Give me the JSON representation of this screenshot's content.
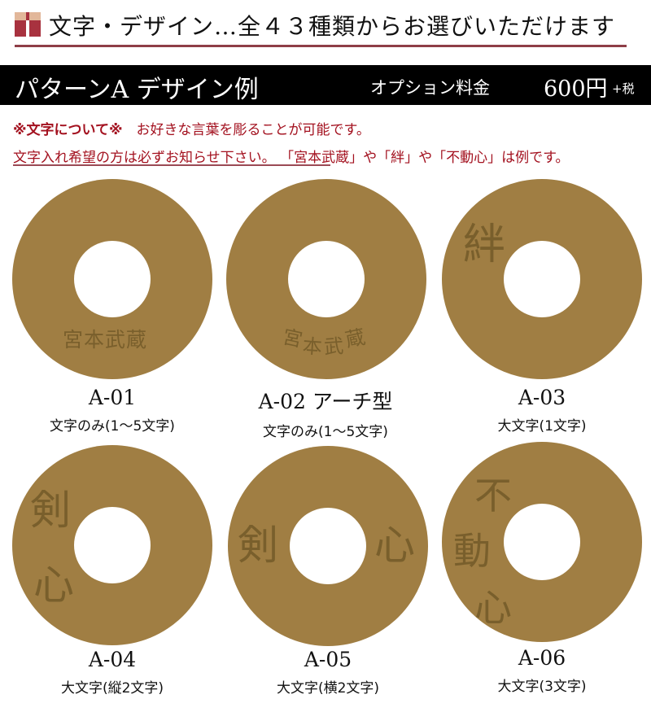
{
  "header": {
    "title": "文字・デザイン…全４３種類からお選びいただけます"
  },
  "band": {
    "title": "パターンA デザイン例",
    "option_label": "オプション料金",
    "price": "600円",
    "tax": "+税"
  },
  "notes": {
    "line1_bold": "※文字について※",
    "line1_rest": "お好きな言葉を彫ることが可能です。",
    "line2_underlined": "文字入れ希望の方は必ずお知らせ下さい。",
    "line2_rest": "「宮本武蔵」や「絆」や「不動心」は例です。"
  },
  "disk_color": "#a07e43",
  "designs": [
    {
      "code": "A-01",
      "desc": "文字のみ(1〜5文字)",
      "engraving": [
        "宮本武蔵"
      ]
    },
    {
      "code": "A-02 アーチ型",
      "desc": "文字のみ(1〜5文字)",
      "engraving": [
        "宮",
        "本",
        "武",
        "蔵"
      ]
    },
    {
      "code": "A-03",
      "desc": "大文字(1文字)",
      "engraving": [
        "絆"
      ]
    },
    {
      "code": "A-04",
      "desc": "大文字(縦2文字)",
      "engraving": [
        "剣",
        "心"
      ]
    },
    {
      "code": "A-05",
      "desc": "大文字(横2文字)",
      "engraving": [
        "剣",
        "心"
      ]
    },
    {
      "code": "A-06",
      "desc": "大文字(3文字)",
      "engraving": [
        "不",
        "動",
        "心"
      ]
    }
  ]
}
